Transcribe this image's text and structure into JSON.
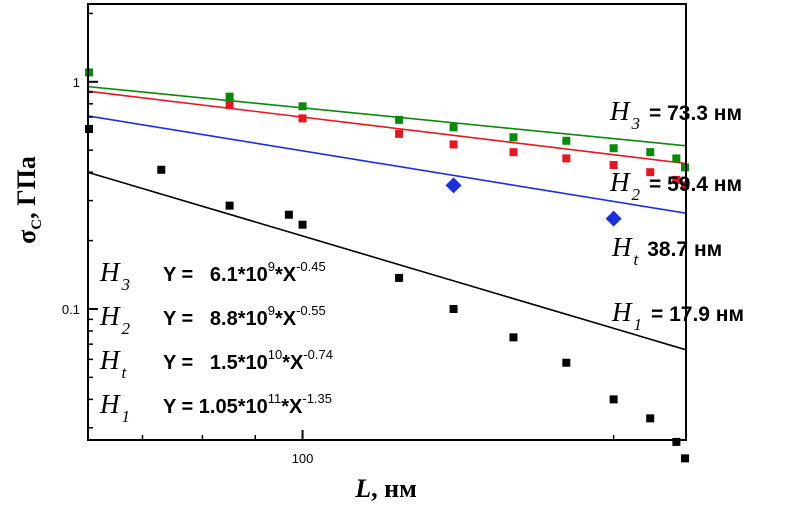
{
  "chart_data": {
    "type": "scatter",
    "x_scale": "log",
    "y_scale": "log",
    "xlim": [
      62,
      235
    ],
    "ylim": [
      0.0265,
      2.2
    ],
    "xlabel": {
      "main": "L",
      "rest": ", нм"
    },
    "ylabel": {
      "main": "σ",
      "sub": "C",
      "rest": ", ГПа"
    },
    "x_ticks": [
      {
        "value": 100,
        "label": "100"
      }
    ],
    "y_ticks": [
      {
        "value": 0.1,
        "label": "0.1"
      },
      {
        "value": 1,
        "label": "1"
      }
    ],
    "series": [
      {
        "key": "H3",
        "color": "#0a8a0a",
        "marker": "square",
        "fit": {
          "a": 6100000000.0,
          "b": -0.45
        },
        "points": [
          [
            62,
            1.1
          ],
          [
            85,
            0.86
          ],
          [
            100,
            0.78
          ],
          [
            124,
            0.68
          ],
          [
            140,
            0.63
          ],
          [
            160,
            0.57
          ],
          [
            180,
            0.55
          ],
          [
            200,
            0.51
          ],
          [
            217,
            0.49
          ],
          [
            230,
            0.46
          ],
          [
            240,
            0.42
          ]
        ]
      },
      {
        "key": "H2",
        "color": "#e8161e",
        "marker": "square",
        "fit": {
          "a": 8800000000.0,
          "b": -0.55
        },
        "points": [
          [
            85,
            0.79
          ],
          [
            100,
            0.69
          ],
          [
            124,
            0.59
          ],
          [
            140,
            0.53
          ],
          [
            160,
            0.49
          ],
          [
            180,
            0.46
          ],
          [
            200,
            0.43
          ],
          [
            217,
            0.4
          ],
          [
            230,
            0.37
          ],
          [
            240,
            0.35
          ]
        ]
      },
      {
        "key": "Ht",
        "color": "#1a2fe0",
        "marker": "diamond",
        "fit": {
          "a": 15000000000.0,
          "b": -0.74
        },
        "points": [
          [
            140,
            0.35
          ],
          [
            200,
            0.25
          ]
        ]
      },
      {
        "key": "H1",
        "color": "#000000",
        "marker": "square",
        "fit": {
          "a": 105000000000.0,
          "b": -1.35
        },
        "points": [
          [
            62,
            0.62
          ],
          [
            73,
            0.41
          ],
          [
            85,
            0.285
          ],
          [
            97,
            0.26
          ],
          [
            100,
            0.235
          ],
          [
            124,
            0.137
          ],
          [
            140,
            0.1
          ],
          [
            160,
            0.075
          ],
          [
            180,
            0.058
          ],
          [
            200,
            0.04
          ],
          [
            217,
            0.033
          ],
          [
            230,
            0.026
          ],
          [
            240,
            0.022
          ]
        ]
      }
    ],
    "right_labels": [
      {
        "key": "H3",
        "italic": "H",
        "sub": "3",
        "text": "= 73.3 нм"
      },
      {
        "key": "H2",
        "italic": "H",
        "sub": "2",
        "text": "= 59.4 нм"
      },
      {
        "key": "Ht",
        "italic": "H",
        "sub": "t",
        "text": "38.7 нм"
      },
      {
        "key": "H1",
        "italic": "H",
        "sub": "1",
        "text": "= 17.9 нм"
      }
    ],
    "equations": [
      {
        "key": "H3",
        "italic": "H",
        "sub": "3",
        "y_pre": "Y =   6.1*10",
        "exp1": "9",
        "x_pre": "*X",
        "exp2": "-0.45"
      },
      {
        "key": "H2",
        "italic": "H",
        "sub": "2",
        "y_pre": "Y =   8.8*10",
        "exp1": "9",
        "x_pre": "*X",
        "exp2": "-0.55"
      },
      {
        "key": "Ht",
        "italic": "H",
        "sub": "t",
        "y_pre": "Y =   1.5*10",
        "exp1": "10",
        "x_pre": "*X",
        "exp2": "-0.74"
      },
      {
        "key": "H1",
        "italic": "H",
        "sub": "1",
        "y_pre": "Y = 1.05*10",
        "exp1": "11",
        "x_pre": "*X",
        "exp2": "-1.35"
      }
    ]
  }
}
